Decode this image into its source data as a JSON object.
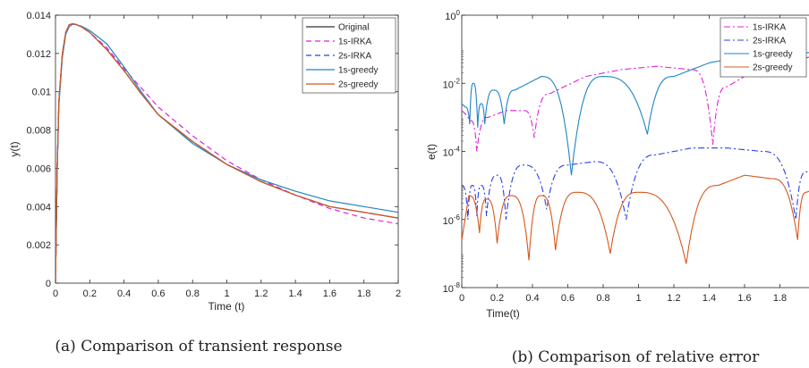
{
  "chart_data": [
    {
      "type": "line",
      "caption": "(a) Comparison of transient response",
      "xlabel": "Time (t)",
      "ylabel": "y(t)",
      "xlim": [
        0,
        2
      ],
      "ylim": [
        0,
        0.014
      ],
      "xticks": [
        0,
        0.2,
        0.4,
        0.6,
        0.8,
        1,
        1.2,
        1.4,
        1.6,
        1.8,
        2
      ],
      "xtick_labels": [
        "0",
        "0.2",
        "0.4",
        "0.6",
        "0.8",
        "1",
        "1.2",
        "1.4",
        "1.6",
        "1.8",
        "2"
      ],
      "yticks": [
        0,
        0.002,
        0.004,
        0.006,
        0.008,
        0.01,
        0.012,
        0.014
      ],
      "ytick_labels": [
        "0",
        "0.002",
        "0.004",
        "0.006",
        "0.008",
        "0.01",
        "0.012",
        "0.014"
      ],
      "legend_position": "top-right",
      "grid": false,
      "series": [
        {
          "name": "Original",
          "color": "#333333",
          "dash": "solid",
          "x": [
            0,
            0.01,
            0.02,
            0.04,
            0.06,
            0.08,
            0.1,
            0.12,
            0.15,
            0.2,
            0.3,
            0.4,
            0.5,
            0.6,
            0.8,
            1.0,
            1.2,
            1.4,
            1.6,
            1.8,
            2.0
          ],
          "y": [
            0,
            0.006,
            0.0095,
            0.012,
            0.0131,
            0.0135,
            0.01355,
            0.01352,
            0.0134,
            0.0131,
            0.0122,
            0.0111,
            0.0099,
            0.0088,
            0.0074,
            0.0062,
            0.0053,
            0.0046,
            0.004,
            0.0037,
            0.0034
          ]
        },
        {
          "name": "1s-IRKA",
          "color": "#e020d8",
          "dash": "6,4",
          "x": [
            0,
            0.01,
            0.02,
            0.04,
            0.06,
            0.08,
            0.1,
            0.12,
            0.15,
            0.2,
            0.3,
            0.4,
            0.5,
            0.6,
            0.8,
            1.0,
            1.2,
            1.4,
            1.6,
            1.8,
            2.0
          ],
          "y": [
            0,
            0.006,
            0.0095,
            0.012,
            0.0131,
            0.0135,
            0.01355,
            0.01352,
            0.0134,
            0.0131,
            0.0123,
            0.0112,
            0.0102,
            0.0092,
            0.0077,
            0.0064,
            0.0054,
            0.0046,
            0.0039,
            0.0034,
            0.0031
          ]
        },
        {
          "name": "2s-IRKA",
          "color": "#2840e8",
          "dash": "6,4",
          "x": [
            0,
            0.01,
            0.02,
            0.04,
            0.06,
            0.08,
            0.1,
            0.12,
            0.15,
            0.2,
            0.3,
            0.4,
            0.5,
            0.6,
            0.8,
            1.0,
            1.2,
            1.4,
            1.6,
            1.8,
            2.0
          ],
          "y": [
            0,
            0.006,
            0.0095,
            0.012,
            0.0131,
            0.0135,
            0.01355,
            0.01352,
            0.0134,
            0.0131,
            0.0122,
            0.0111,
            0.0099,
            0.0088,
            0.0074,
            0.0062,
            0.0053,
            0.0046,
            0.004,
            0.0037,
            0.0034
          ]
        },
        {
          "name": "1s-greedy",
          "color": "#1f84c4",
          "dash": "solid",
          "x": [
            0,
            0.01,
            0.02,
            0.04,
            0.06,
            0.08,
            0.1,
            0.12,
            0.15,
            0.2,
            0.3,
            0.4,
            0.5,
            0.6,
            0.8,
            1.0,
            1.2,
            1.4,
            1.6,
            1.8,
            2.0
          ],
          "y": [
            0,
            0.0058,
            0.0093,
            0.0118,
            0.013,
            0.0134,
            0.01353,
            0.0135,
            0.01343,
            0.0132,
            0.0125,
            0.0113,
            0.01,
            0.0088,
            0.0073,
            0.0062,
            0.0054,
            0.0048,
            0.0043,
            0.004,
            0.0037
          ]
        },
        {
          "name": "2s-greedy",
          "color": "#d8581c",
          "dash": "solid",
          "x": [
            0,
            0.01,
            0.02,
            0.04,
            0.06,
            0.08,
            0.1,
            0.12,
            0.15,
            0.2,
            0.3,
            0.4,
            0.5,
            0.6,
            0.8,
            1.0,
            1.2,
            1.4,
            1.6,
            1.8,
            2.0
          ],
          "y": [
            0,
            0.006,
            0.0095,
            0.012,
            0.0131,
            0.0135,
            0.01355,
            0.01352,
            0.0134,
            0.0131,
            0.0122,
            0.0111,
            0.0099,
            0.0088,
            0.0074,
            0.0062,
            0.0053,
            0.0046,
            0.004,
            0.0037,
            0.0034
          ]
        }
      ]
    },
    {
      "type": "line",
      "caption": "(b) Comparison of relative error",
      "xlabel": "Time(t)",
      "ylabel": "e(t)",
      "xlim": [
        0,
        2
      ],
      "ylim_log10": [
        -8,
        0
      ],
      "yscale": "log",
      "xticks": [
        0,
        0.2,
        0.4,
        0.6,
        0.8,
        1,
        1.2,
        1.4,
        1.6,
        1.8
      ],
      "xtick_labels": [
        "0",
        "0.2",
        "0.4",
        "0.6",
        "0.8",
        "1",
        "1.2",
        "1.4",
        "1.6",
        "1.8"
      ],
      "ytick_exponents": [
        -8,
        -6,
        -4,
        -2,
        0
      ],
      "ytick_base": "10",
      "legend_position": "top-right",
      "grid": false,
      "series": [
        {
          "name": "1s-IRKA",
          "color": "#e020d8",
          "dash": "7,3,2,3",
          "dips": [
            0.085,
            0.41,
            1.42
          ],
          "dip_values_log10": [
            -4.0,
            -3.6,
            -3.8
          ],
          "x": [
            0,
            0.02,
            0.05,
            0.085,
            0.15,
            0.25,
            0.35,
            0.41,
            0.5,
            0.7,
            0.9,
            1.1,
            1.3,
            1.42,
            1.5,
            1.7,
            1.9,
            2.0
          ],
          "y_log10": [
            -2.8,
            -2.9,
            -3.1,
            -4.0,
            -3.0,
            -2.8,
            -2.8,
            -3.6,
            -2.3,
            -1.8,
            -1.6,
            -1.5,
            -1.6,
            -3.8,
            -2.1,
            -1.5,
            -1.3,
            -1.2
          ]
        },
        {
          "name": "2s-IRKA",
          "color": "#2840e8",
          "dash": "7,3,2,3",
          "dips": [
            0.035,
            0.085,
            0.14,
            0.25,
            0.48,
            0.93,
            1.89
          ],
          "dip_values_log10": [
            -6.0,
            -5.9,
            -5.9,
            -6.0,
            -5.7,
            -6.0,
            -6.0
          ],
          "x": [
            0,
            0.035,
            0.06,
            0.085,
            0.11,
            0.14,
            0.2,
            0.25,
            0.35,
            0.48,
            0.6,
            0.75,
            0.93,
            1.1,
            1.3,
            1.5,
            1.7,
            1.89,
            1.95,
            2.0
          ],
          "y_log10": [
            -5.0,
            -6.0,
            -5.0,
            -5.9,
            -5.0,
            -5.9,
            -4.7,
            -6.0,
            -4.4,
            -5.7,
            -4.4,
            -4.3,
            -6.0,
            -4.1,
            -3.9,
            -3.9,
            -4.0,
            -6.0,
            -4.6,
            -4.5
          ]
        },
        {
          "name": "1s-greedy",
          "color": "#1f84c4",
          "dash": "solid",
          "dips": [
            0.045,
            0.09,
            0.13,
            0.24,
            0.62,
            1.05
          ],
          "dip_values_log10": [
            -3.2,
            -3.3,
            -3.2,
            -3.2,
            -4.7,
            -3.5
          ],
          "x": [
            0,
            0.02,
            0.045,
            0.065,
            0.09,
            0.11,
            0.13,
            0.18,
            0.24,
            0.3,
            0.45,
            0.62,
            0.8,
            1.05,
            1.2,
            1.4,
            1.6,
            1.8,
            2.0
          ],
          "y_log10": [
            -2.6,
            -2.7,
            -3.2,
            -2.0,
            -3.3,
            -2.6,
            -3.2,
            -2.2,
            -3.2,
            -2.2,
            -1.8,
            -4.7,
            -1.8,
            -3.5,
            -1.8,
            -1.4,
            -1.2,
            -1.1,
            -1.1
          ]
        },
        {
          "name": "2s-greedy",
          "color": "#d8581c",
          "dash": "solid",
          "dips": [
            0.0,
            0.1,
            0.2,
            0.38,
            0.53,
            0.84,
            1.27,
            1.9
          ],
          "dip_values_log10": [
            -6.6,
            -6.4,
            -6.7,
            -7.2,
            -6.9,
            -7.0,
            -7.3,
            -6.6
          ],
          "x": [
            0,
            0.04,
            0.1,
            0.14,
            0.2,
            0.28,
            0.38,
            0.45,
            0.53,
            0.65,
            0.84,
            1.0,
            1.27,
            1.45,
            1.6,
            1.75,
            1.9,
            1.95,
            2.0
          ],
          "y_log10": [
            -6.6,
            -5.3,
            -6.4,
            -5.4,
            -6.7,
            -5.3,
            -7.2,
            -5.3,
            -6.9,
            -5.2,
            -7.0,
            -5.2,
            -7.3,
            -5.0,
            -4.7,
            -4.8,
            -6.6,
            -5.2,
            -5.1
          ]
        }
      ]
    }
  ]
}
